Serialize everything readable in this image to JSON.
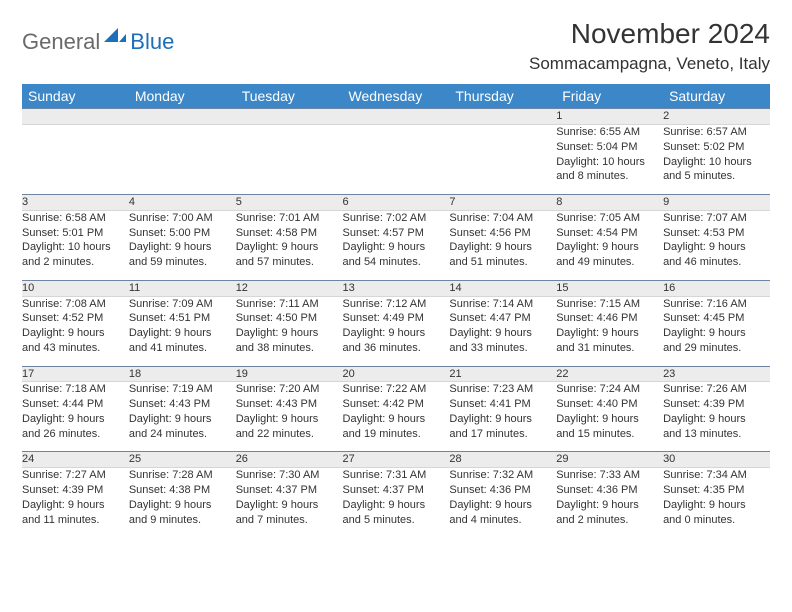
{
  "brand": {
    "general": "General",
    "blue": "Blue",
    "icon_color": "#1d6fb8",
    "general_color": "#6a6a6a"
  },
  "title": "November 2024",
  "location": "Sommacampagna, Veneto, Italy",
  "colors": {
    "header_bg": "#3b87c8",
    "header_fg": "#ffffff",
    "daynum_bg": "#ececec",
    "rule": "#6f84a3",
    "text": "#333333",
    "background": "#ffffff"
  },
  "weekdays": [
    "Sunday",
    "Monday",
    "Tuesday",
    "Wednesday",
    "Thursday",
    "Friday",
    "Saturday"
  ],
  "weeks": [
    {
      "nums": [
        "",
        "",
        "",
        "",
        "",
        "1",
        "2"
      ],
      "cells": [
        {
          "sunrise": "",
          "sunset": "",
          "daylight1": "",
          "daylight2": ""
        },
        {
          "sunrise": "",
          "sunset": "",
          "daylight1": "",
          "daylight2": ""
        },
        {
          "sunrise": "",
          "sunset": "",
          "daylight1": "",
          "daylight2": ""
        },
        {
          "sunrise": "",
          "sunset": "",
          "daylight1": "",
          "daylight2": ""
        },
        {
          "sunrise": "",
          "sunset": "",
          "daylight1": "",
          "daylight2": ""
        },
        {
          "sunrise": "Sunrise: 6:55 AM",
          "sunset": "Sunset: 5:04 PM",
          "daylight1": "Daylight: 10 hours",
          "daylight2": "and 8 minutes."
        },
        {
          "sunrise": "Sunrise: 6:57 AM",
          "sunset": "Sunset: 5:02 PM",
          "daylight1": "Daylight: 10 hours",
          "daylight2": "and 5 minutes."
        }
      ]
    },
    {
      "nums": [
        "3",
        "4",
        "5",
        "6",
        "7",
        "8",
        "9"
      ],
      "cells": [
        {
          "sunrise": "Sunrise: 6:58 AM",
          "sunset": "Sunset: 5:01 PM",
          "daylight1": "Daylight: 10 hours",
          "daylight2": "and 2 minutes."
        },
        {
          "sunrise": "Sunrise: 7:00 AM",
          "sunset": "Sunset: 5:00 PM",
          "daylight1": "Daylight: 9 hours",
          "daylight2": "and 59 minutes."
        },
        {
          "sunrise": "Sunrise: 7:01 AM",
          "sunset": "Sunset: 4:58 PM",
          "daylight1": "Daylight: 9 hours",
          "daylight2": "and 57 minutes."
        },
        {
          "sunrise": "Sunrise: 7:02 AM",
          "sunset": "Sunset: 4:57 PM",
          "daylight1": "Daylight: 9 hours",
          "daylight2": "and 54 minutes."
        },
        {
          "sunrise": "Sunrise: 7:04 AM",
          "sunset": "Sunset: 4:56 PM",
          "daylight1": "Daylight: 9 hours",
          "daylight2": "and 51 minutes."
        },
        {
          "sunrise": "Sunrise: 7:05 AM",
          "sunset": "Sunset: 4:54 PM",
          "daylight1": "Daylight: 9 hours",
          "daylight2": "and 49 minutes."
        },
        {
          "sunrise": "Sunrise: 7:07 AM",
          "sunset": "Sunset: 4:53 PM",
          "daylight1": "Daylight: 9 hours",
          "daylight2": "and 46 minutes."
        }
      ]
    },
    {
      "nums": [
        "10",
        "11",
        "12",
        "13",
        "14",
        "15",
        "16"
      ],
      "cells": [
        {
          "sunrise": "Sunrise: 7:08 AM",
          "sunset": "Sunset: 4:52 PM",
          "daylight1": "Daylight: 9 hours",
          "daylight2": "and 43 minutes."
        },
        {
          "sunrise": "Sunrise: 7:09 AM",
          "sunset": "Sunset: 4:51 PM",
          "daylight1": "Daylight: 9 hours",
          "daylight2": "and 41 minutes."
        },
        {
          "sunrise": "Sunrise: 7:11 AM",
          "sunset": "Sunset: 4:50 PM",
          "daylight1": "Daylight: 9 hours",
          "daylight2": "and 38 minutes."
        },
        {
          "sunrise": "Sunrise: 7:12 AM",
          "sunset": "Sunset: 4:49 PM",
          "daylight1": "Daylight: 9 hours",
          "daylight2": "and 36 minutes."
        },
        {
          "sunrise": "Sunrise: 7:14 AM",
          "sunset": "Sunset: 4:47 PM",
          "daylight1": "Daylight: 9 hours",
          "daylight2": "and 33 minutes."
        },
        {
          "sunrise": "Sunrise: 7:15 AM",
          "sunset": "Sunset: 4:46 PM",
          "daylight1": "Daylight: 9 hours",
          "daylight2": "and 31 minutes."
        },
        {
          "sunrise": "Sunrise: 7:16 AM",
          "sunset": "Sunset: 4:45 PM",
          "daylight1": "Daylight: 9 hours",
          "daylight2": "and 29 minutes."
        }
      ]
    },
    {
      "nums": [
        "17",
        "18",
        "19",
        "20",
        "21",
        "22",
        "23"
      ],
      "cells": [
        {
          "sunrise": "Sunrise: 7:18 AM",
          "sunset": "Sunset: 4:44 PM",
          "daylight1": "Daylight: 9 hours",
          "daylight2": "and 26 minutes."
        },
        {
          "sunrise": "Sunrise: 7:19 AM",
          "sunset": "Sunset: 4:43 PM",
          "daylight1": "Daylight: 9 hours",
          "daylight2": "and 24 minutes."
        },
        {
          "sunrise": "Sunrise: 7:20 AM",
          "sunset": "Sunset: 4:43 PM",
          "daylight1": "Daylight: 9 hours",
          "daylight2": "and 22 minutes."
        },
        {
          "sunrise": "Sunrise: 7:22 AM",
          "sunset": "Sunset: 4:42 PM",
          "daylight1": "Daylight: 9 hours",
          "daylight2": "and 19 minutes."
        },
        {
          "sunrise": "Sunrise: 7:23 AM",
          "sunset": "Sunset: 4:41 PM",
          "daylight1": "Daylight: 9 hours",
          "daylight2": "and 17 minutes."
        },
        {
          "sunrise": "Sunrise: 7:24 AM",
          "sunset": "Sunset: 4:40 PM",
          "daylight1": "Daylight: 9 hours",
          "daylight2": "and 15 minutes."
        },
        {
          "sunrise": "Sunrise: 7:26 AM",
          "sunset": "Sunset: 4:39 PM",
          "daylight1": "Daylight: 9 hours",
          "daylight2": "and 13 minutes."
        }
      ]
    },
    {
      "nums": [
        "24",
        "25",
        "26",
        "27",
        "28",
        "29",
        "30"
      ],
      "cells": [
        {
          "sunrise": "Sunrise: 7:27 AM",
          "sunset": "Sunset: 4:39 PM",
          "daylight1": "Daylight: 9 hours",
          "daylight2": "and 11 minutes."
        },
        {
          "sunrise": "Sunrise: 7:28 AM",
          "sunset": "Sunset: 4:38 PM",
          "daylight1": "Daylight: 9 hours",
          "daylight2": "and 9 minutes."
        },
        {
          "sunrise": "Sunrise: 7:30 AM",
          "sunset": "Sunset: 4:37 PM",
          "daylight1": "Daylight: 9 hours",
          "daylight2": "and 7 minutes."
        },
        {
          "sunrise": "Sunrise: 7:31 AM",
          "sunset": "Sunset: 4:37 PM",
          "daylight1": "Daylight: 9 hours",
          "daylight2": "and 5 minutes."
        },
        {
          "sunrise": "Sunrise: 7:32 AM",
          "sunset": "Sunset: 4:36 PM",
          "daylight1": "Daylight: 9 hours",
          "daylight2": "and 4 minutes."
        },
        {
          "sunrise": "Sunrise: 7:33 AM",
          "sunset": "Sunset: 4:36 PM",
          "daylight1": "Daylight: 9 hours",
          "daylight2": "and 2 minutes."
        },
        {
          "sunrise": "Sunrise: 7:34 AM",
          "sunset": "Sunset: 4:35 PM",
          "daylight1": "Daylight: 9 hours",
          "daylight2": "and 0 minutes."
        }
      ]
    }
  ]
}
